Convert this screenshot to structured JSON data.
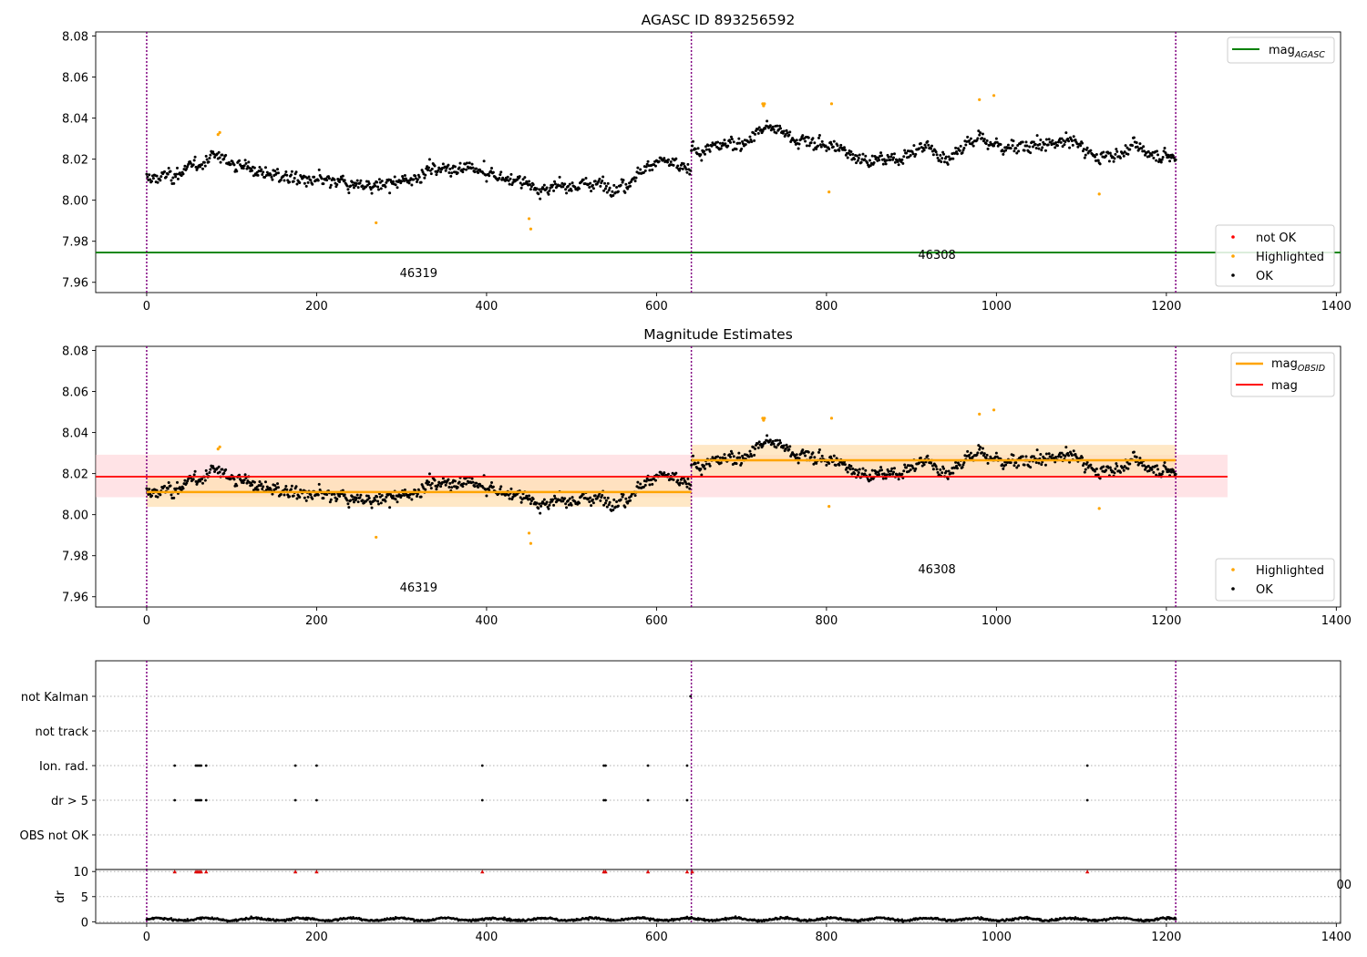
{
  "chart_data": [
    {
      "type": "scatter",
      "title": "AGASC ID 893256592",
      "xlim": [
        -60,
        1405
      ],
      "ylim": [
        7.955,
        8.082
      ],
      "yticks": [
        7.96,
        7.98,
        8.0,
        8.02,
        8.04,
        8.06,
        8.08
      ],
      "ytick_labels": [
        "7.96",
        "7.98",
        "8.00",
        "8.02",
        "8.04",
        "8.06",
        "8.08"
      ],
      "xticks": [
        0,
        200,
        400,
        600,
        800,
        1000,
        1200,
        1400
      ],
      "xtick_labels": [
        "0",
        "200",
        "400",
        "600",
        "800",
        "1000",
        "1200",
        "1400"
      ],
      "obs_boundaries": [
        0,
        641,
        1211
      ],
      "obs_labels": [
        {
          "text": "46319",
          "x": 320,
          "y": 7.9625
        },
        {
          "text": "46308",
          "x": 930,
          "y": 7.9715
        }
      ],
      "mag_agasc": 7.9745,
      "series_ok_segments": [
        {
          "x_start": 0,
          "x_end": 640,
          "anchors": [
            [
              0,
              8.01
            ],
            [
              40,
              8.013
            ],
            [
              80,
              8.022
            ],
            [
              110,
              8.017
            ],
            [
              150,
              8.012
            ],
            [
              200,
              8.009
            ],
            [
              260,
              8.007
            ],
            [
              300,
              8.008
            ],
            [
              330,
              8.015
            ],
            [
              370,
              8.016
            ],
            [
              400,
              8.013
            ],
            [
              440,
              8.009
            ],
            [
              470,
              8.005
            ],
            [
              520,
              8.008
            ],
            [
              560,
              8.007
            ],
            [
              600,
              8.02
            ],
            [
              640,
              8.014
            ]
          ],
          "noise": 0.0045
        },
        {
          "x_start": 641,
          "x_end": 1211,
          "anchors": [
            [
              641,
              8.024
            ],
            [
              700,
              8.028
            ],
            [
              730,
              8.036
            ],
            [
              770,
              8.029
            ],
            [
              810,
              8.026
            ],
            [
              850,
              8.019
            ],
            [
              880,
              8.02
            ],
            [
              920,
              8.027
            ],
            [
              940,
              8.02
            ],
            [
              980,
              8.031
            ],
            [
              1000,
              8.026
            ],
            [
              1060,
              8.027
            ],
            [
              1090,
              8.029
            ],
            [
              1120,
              8.02
            ],
            [
              1160,
              8.026
            ],
            [
              1211,
              8.02
            ]
          ],
          "noise": 0.0045
        }
      ],
      "highlighted": [
        [
          84,
          8.032
        ],
        [
          86,
          8.033
        ],
        [
          270,
          7.989
        ],
        [
          450,
          7.991
        ],
        [
          452,
          7.986
        ],
        [
          725,
          8.047
        ],
        [
          726,
          8.046
        ],
        [
          727,
          8.047
        ],
        [
          803,
          8.004
        ],
        [
          806,
          8.047
        ],
        [
          980,
          8.049
        ],
        [
          997,
          8.051
        ],
        [
          1121,
          8.003
        ]
      ],
      "legend_upper": [
        "mag_AGASC"
      ],
      "legend_lower": [
        "not OK",
        "Highlighted",
        "OK"
      ],
      "colors": {
        "ok": "#000000",
        "highlighted": "#ffa500",
        "not_ok": "#ff0000",
        "mag_agasc": "#008000",
        "boundary": "#800080"
      }
    },
    {
      "type": "scatter",
      "title": "Magnitude Estimates",
      "xlim": [
        -60,
        1405
      ],
      "ylim": [
        7.955,
        8.082
      ],
      "yticks": [
        7.96,
        7.98,
        8.0,
        8.02,
        8.04,
        8.06,
        8.08
      ],
      "ytick_labels": [
        "7.96",
        "7.98",
        "8.00",
        "8.02",
        "8.04",
        "8.06",
        "8.08"
      ],
      "xticks": [
        0,
        200,
        400,
        600,
        800,
        1000,
        1200,
        1400
      ],
      "xtick_labels": [
        "0",
        "200",
        "400",
        "600",
        "800",
        "1000",
        "1200",
        "1400"
      ],
      "obs_labels": [
        {
          "text": "46319",
          "x": 320,
          "y": 7.9625
        },
        {
          "text": "46308",
          "x": 930,
          "y": 7.9715
        }
      ],
      "mag": 8.0185,
      "mag_band": [
        8.0085,
        8.0292
      ],
      "mag_band_x": [
        -60,
        1272
      ],
      "mag_obsid": [
        {
          "x_start": 0,
          "x_end": 641,
          "value": 8.011,
          "band": [
            8.0038,
            8.0185
          ]
        },
        {
          "x_start": 641,
          "x_end": 1211,
          "value": 8.0265,
          "band": [
            8.019,
            8.034
          ]
        }
      ],
      "legend_upper": [
        "mag_OBSID",
        "mag"
      ],
      "legend_lower": [
        "Highlighted",
        "OK"
      ],
      "colors": {
        "mag": "#ff0000",
        "mag_band": "#ffc0c8",
        "mag_obsid": "#ffa500",
        "mag_obsid_band": "#ffe0b3"
      }
    },
    {
      "type": "scatter",
      "title": "",
      "xlim": [
        -60,
        1405
      ],
      "flag_rows": [
        "not Kalman",
        "not track",
        "Ion. rad.",
        "dr > 5",
        "OBS not OK"
      ],
      "flag_points": {
        "not Kalman": [
          640
        ],
        "not track": [],
        "Ion. rad.": [
          33,
          58,
          60,
          62,
          64,
          70,
          175,
          200,
          395,
          538,
          540,
          590,
          636,
          1107
        ],
        "dr > 5": [
          33,
          58,
          60,
          62,
          64,
          70,
          175,
          200,
          395,
          538,
          540,
          590,
          636,
          1107
        ],
        "OBS not OK": []
      }
    },
    {
      "type": "scatter",
      "title": "",
      "xlim": [
        -60,
        1405
      ],
      "ylim": [
        -0.3,
        10.4
      ],
      "yticks": [
        0,
        5,
        10
      ],
      "ytick_labels": [
        "0",
        "5",
        "10"
      ],
      "ylabel": "dr",
      "xticks": [
        0,
        200,
        400,
        600,
        800,
        1000,
        1200,
        1400
      ],
      "xtick_labels": [
        "0",
        "200",
        "400",
        "600",
        "800",
        "1000",
        "1200",
        "1400"
      ],
      "dr_level": 0.5,
      "dr_outliers_capped_at": 10,
      "dr_outlier_x": [
        33,
        58,
        60,
        62,
        64,
        70,
        175,
        200,
        395,
        538,
        540,
        590,
        636,
        642,
        1107
      ],
      "overflow_tick_label": "00"
    }
  ]
}
